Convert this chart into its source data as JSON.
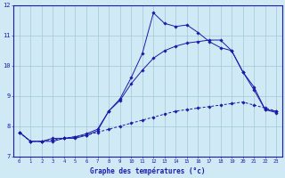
{
  "hours": [
    0,
    1,
    2,
    3,
    4,
    5,
    6,
    7,
    8,
    9,
    10,
    11,
    12,
    13,
    14,
    15,
    16,
    17,
    18,
    19,
    20,
    21,
    22,
    23
  ],
  "line_jagged": [
    7.8,
    7.5,
    7.5,
    7.5,
    7.6,
    7.6,
    7.7,
    7.85,
    8.5,
    8.9,
    9.6,
    10.4,
    11.75,
    11.4,
    11.3,
    11.35,
    11.1,
    10.8,
    10.6,
    10.5,
    9.8,
    9.3,
    8.55,
    8.5
  ],
  "line_smooth": [
    7.8,
    7.5,
    7.5,
    7.6,
    7.6,
    7.65,
    7.75,
    7.9,
    8.5,
    8.85,
    9.4,
    9.85,
    10.25,
    10.5,
    10.65,
    10.75,
    10.8,
    10.85,
    10.85,
    10.5,
    9.8,
    9.2,
    8.55,
    8.45
  ],
  "line_dashed": [
    7.8,
    7.5,
    7.5,
    7.55,
    7.6,
    7.65,
    7.7,
    7.8,
    7.9,
    8.0,
    8.1,
    8.2,
    8.3,
    8.4,
    8.5,
    8.55,
    8.6,
    8.65,
    8.7,
    8.75,
    8.8,
    8.7,
    8.6,
    8.5
  ],
  "line_color": "#1a1aaa",
  "bg_color": "#d0eaf5",
  "grid_color": "#a0c8d8",
  "text_color": "#1a1aaa",
  "xlabel": "Graphe des températures (°c)",
  "ylim": [
    7,
    12
  ],
  "xlim": [
    -0.5,
    23.5
  ]
}
